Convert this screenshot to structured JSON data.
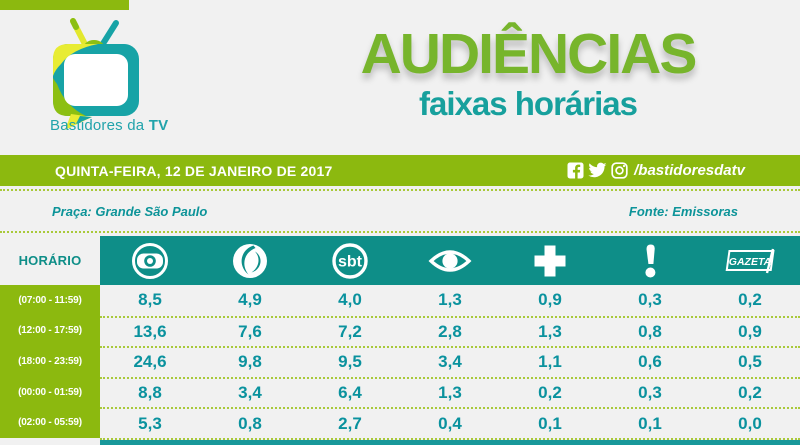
{
  "colors": {
    "accent_green": "#8cb90f",
    "title_green": "#77b52c",
    "teal_band": "#0e8e88",
    "teal_text": "#0a929e",
    "dotted_line": "#a9c93a",
    "background": "#f1f1f1"
  },
  "brand": {
    "logo_icon": "bastidores-da-tv-logo",
    "name_regular": "Bastidores da ",
    "name_bold": "TV"
  },
  "title": {
    "main": "AUDIÊNCIAS",
    "subtitle": "faixas horárias"
  },
  "date_bar": {
    "date": "QUINTA-FEIRA, 12 DE JANEIRO DE 2017",
    "social_icons": [
      "facebook-icon",
      "twitter-icon",
      "instagram-icon"
    ],
    "social_handle": "/bastidoresdatv"
  },
  "meta": {
    "place_label": "Praça: Grande São Paulo",
    "source_label": "Fonte: Emissoras"
  },
  "icon_glyphs": {
    "facebook_letter": "f",
    "sbt_text": "sbt",
    "gazeta_text": "GAZETA"
  },
  "table": {
    "corner_header": "HORÁRIO",
    "channel_icons": [
      "globo-icon",
      "record-icon",
      "sbt-icon",
      "band-eye-icon",
      "cross-plus-icon",
      "exclamation-icon",
      "gazeta-icon"
    ],
    "rows": [
      {
        "label": "(07:00 - 11:59)",
        "values": [
          "8,5",
          "4,9",
          "4,0",
          "1,3",
          "0,9",
          "0,3",
          "0,2"
        ]
      },
      {
        "label": "(12:00 - 17:59)",
        "values": [
          "13,6",
          "7,6",
          "7,2",
          "2,8",
          "1,3",
          "0,8",
          "0,9"
        ]
      },
      {
        "label": "(18:00 - 23:59)",
        "values": [
          "24,6",
          "9,8",
          "9,5",
          "3,4",
          "1,1",
          "0,6",
          "0,5"
        ]
      },
      {
        "label": "(00:00 - 01:59)",
        "values": [
          "8,8",
          "3,4",
          "6,4",
          "1,3",
          "0,2",
          "0,3",
          "0,2"
        ]
      },
      {
        "label": "(02:00 - 05:59)",
        "values": [
          "5,3",
          "0,8",
          "2,7",
          "0,4",
          "0,1",
          "0,1",
          "0,0"
        ]
      }
    ]
  },
  "chart_data": {
    "type": "table",
    "title": "AUDIÊNCIAS",
    "subtitle": "faixas horárias",
    "date": "QUINTA-FEIRA, 12 DE JANEIRO DE 2017",
    "market": "Grande São Paulo",
    "source": "Emissoras",
    "row_header": "HORÁRIO",
    "columns": [
      "globo",
      "record",
      "sbt",
      "band",
      "cross-plus",
      "exclamation",
      "gazeta"
    ],
    "rows": [
      "(07:00 - 11:59)",
      "(12:00 - 17:59)",
      "(18:00 - 23:59)",
      "(00:00 - 01:59)",
      "(02:00 - 05:59)"
    ],
    "values": [
      [
        8.5,
        4.9,
        4.0,
        1.3,
        0.9,
        0.3,
        0.2
      ],
      [
        13.6,
        7.6,
        7.2,
        2.8,
        1.3,
        0.8,
        0.9
      ],
      [
        24.6,
        9.8,
        9.5,
        3.4,
        1.1,
        0.6,
        0.5
      ],
      [
        8.8,
        3.4,
        6.4,
        1.3,
        0.2,
        0.3,
        0.2
      ],
      [
        5.3,
        0.8,
        2.7,
        0.4,
        0.1,
        0.1,
        0.0
      ]
    ]
  }
}
